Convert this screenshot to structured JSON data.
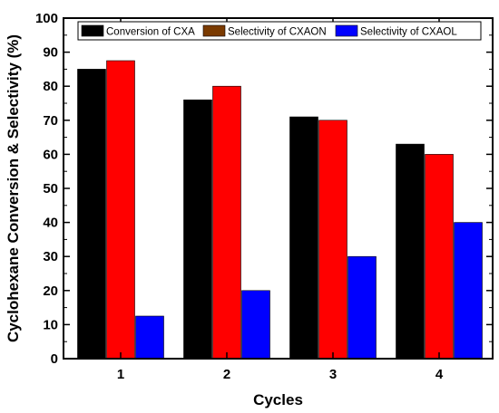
{
  "chart_data": {
    "type": "bar",
    "categories": [
      "1",
      "2",
      "3",
      "4"
    ],
    "series": [
      {
        "name": "Conversion of CXA",
        "values": [
          85,
          76,
          71,
          63
        ],
        "color": "#000000"
      },
      {
        "name": "Selectivity of CXAON",
        "values": [
          87.5,
          80,
          70,
          60
        ],
        "color": "#ff0000"
      },
      {
        "name": "Selectivity of CXAOL",
        "values": [
          12.5,
          20,
          30,
          40
        ],
        "color": "#0000ff"
      }
    ],
    "legend_swatch_colors": [
      "#000000",
      "#7a3a00",
      "#0000ff"
    ],
    "xlabel": "Cycles",
    "ylabel": "Cyclohexane Conversion & Selectivity (%)",
    "ylim": [
      0,
      100
    ],
    "yticks": [
      0,
      10,
      20,
      30,
      40,
      50,
      60,
      70,
      80,
      90,
      100
    ],
    "grid": false,
    "legend_position": "top"
  }
}
